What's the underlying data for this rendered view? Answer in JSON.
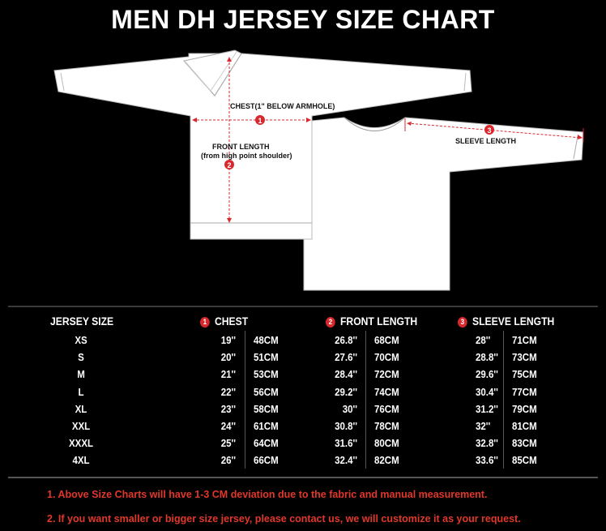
{
  "title": "MEN DH JERSEY SIZE CHART",
  "diagram": {
    "chest_label": "CHEST(1\" BELOW ARMHOLE)",
    "front_length_label": "FRONT LENGTH",
    "front_length_sub": "(from high point shoulder)",
    "sleeve_label": "SLEEVE  LENGTH",
    "markers": [
      "1",
      "2",
      "3"
    ],
    "accent_color": "#d8282e"
  },
  "table": {
    "headers": {
      "size": "JERSEY SIZE",
      "chest": "CHEST",
      "front": "FRONT LENGTH",
      "sleeve": "SLEEVE  LENGTH"
    },
    "rows": [
      {
        "size": "XS",
        "chest_in": "19''",
        "chest_cm": "48CM",
        "front_in": "26.8''",
        "front_cm": "68CM",
        "sleeve_in": "28''",
        "sleeve_cm": "71CM"
      },
      {
        "size": "S",
        "chest_in": "20''",
        "chest_cm": "51CM",
        "front_in": "27.6''",
        "front_cm": "70CM",
        "sleeve_in": "28.8''",
        "sleeve_cm": "73CM"
      },
      {
        "size": "M",
        "chest_in": "21''",
        "chest_cm": "53CM",
        "front_in": "28.4''",
        "front_cm": "72CM",
        "sleeve_in": "29.6''",
        "sleeve_cm": "75CM"
      },
      {
        "size": "L",
        "chest_in": "22''",
        "chest_cm": "56CM",
        "front_in": "29.2''",
        "front_cm": "74CM",
        "sleeve_in": "30.4''",
        "sleeve_cm": "77CM"
      },
      {
        "size": "XL",
        "chest_in": "23''",
        "chest_cm": "58CM",
        "front_in": "30''",
        "front_cm": "76CM",
        "sleeve_in": "31.2''",
        "sleeve_cm": "79CM"
      },
      {
        "size": "XXL",
        "chest_in": "24''",
        "chest_cm": "61CM",
        "front_in": "30.8''",
        "front_cm": "78CM",
        "sleeve_in": "32''",
        "sleeve_cm": "81CM"
      },
      {
        "size": "XXXL",
        "chest_in": "25''",
        "chest_cm": "64CM",
        "front_in": "31.6''",
        "front_cm": "80CM",
        "sleeve_in": "32.8''",
        "sleeve_cm": "83CM"
      },
      {
        "size": "4XL",
        "chest_in": "26''",
        "chest_cm": "66CM",
        "front_in": "32.4''",
        "front_cm": "82CM",
        "sleeve_in": "33.6''",
        "sleeve_cm": "85CM"
      }
    ]
  },
  "notes": [
    "1. Above Size Charts will have 1-3 CM deviation due to the fabric and manual measurement.",
    "2. If you want smaller or bigger size jersey, please contact us, we will customize it as your request."
  ],
  "note_color": "#e0382a"
}
